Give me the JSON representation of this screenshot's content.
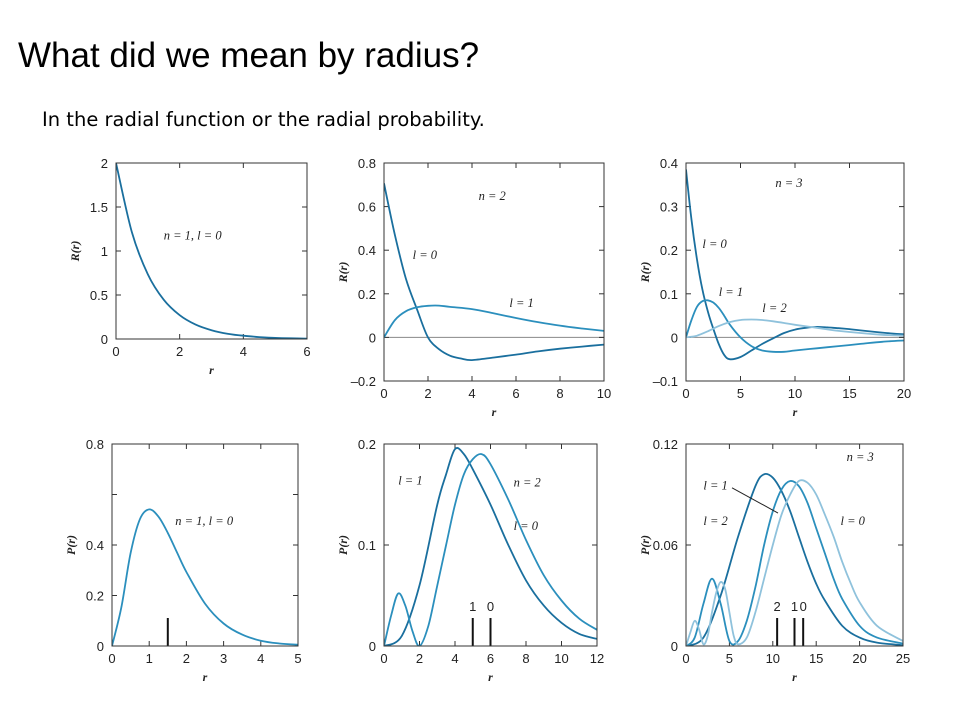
{
  "slide": {
    "title": "What did we mean by radius?",
    "subtitle": "In the radial function or the radial probability."
  },
  "colors": {
    "dark": "#1a6f9e",
    "mid": "#2b8fbd",
    "light": "#8fc2dc",
    "axis": "#333333",
    "zero": "#888888"
  },
  "chart_data": [
    {
      "type": "line",
      "xlabel": "r",
      "ylabel": "R(r)",
      "xlim": [
        0,
        6
      ],
      "ylim": [
        0,
        2
      ],
      "xticks": [
        0,
        2,
        4,
        6
      ],
      "yticks": [
        0,
        0.5,
        1,
        1.5,
        2
      ],
      "yticklabels": [
        "0",
        "0.5",
        "1",
        "1.5",
        "2"
      ],
      "series": [
        {
          "color": "dark",
          "x": [
            0,
            0.5,
            1,
            1.5,
            2,
            2.5,
            3,
            3.5,
            4,
            4.5,
            5,
            5.5,
            6
          ],
          "y": [
            2,
            1.213,
            0.736,
            0.446,
            0.271,
            0.164,
            0.1,
            0.06,
            0.037,
            0.022,
            0.013,
            0.008,
            0.005
          ]
        }
      ],
      "annotations": [
        {
          "text": "n = 1, l = 0",
          "x": 1.5,
          "y": 1.13
        }
      ]
    },
    {
      "type": "line",
      "xlabel": "r",
      "ylabel": "R(r)",
      "xlim": [
        0,
        10
      ],
      "ylim": [
        -0.2,
        0.8
      ],
      "xticks": [
        0,
        2,
        4,
        6,
        8,
        10
      ],
      "yticks": [
        -0.2,
        0,
        0.2,
        0.4,
        0.6,
        0.8
      ],
      "yticklabels": [
        "–0.2",
        "0",
        "0.2",
        "0.4",
        "0.6",
        "0.8"
      ],
      "zero_line": true,
      "series": [
        {
          "label": "l = 0",
          "color": "dark",
          "x": [
            0,
            0.5,
            1,
            1.5,
            2,
            2.5,
            3,
            3.5,
            4,
            5,
            6,
            7,
            8,
            9,
            10
          ],
          "y": [
            0.707,
            0.468,
            0.268,
            0.129,
            0.0,
            -0.054,
            -0.084,
            -0.097,
            -0.104,
            -0.092,
            -0.079,
            -0.064,
            -0.052,
            -0.042,
            -0.033
          ]
        },
        {
          "label": "l = 1",
          "color": "mid",
          "x": [
            0,
            0.5,
            1,
            1.5,
            2,
            2.5,
            3,
            4,
            5,
            6,
            7,
            8,
            9,
            10
          ],
          "y": [
            0,
            0.08,
            0.12,
            0.138,
            0.145,
            0.146,
            0.14,
            0.13,
            0.11,
            0.089,
            0.07,
            0.054,
            0.041,
            0.03
          ]
        }
      ],
      "annotations": [
        {
          "text": "n = 2",
          "x": 4.3,
          "y": 0.63
        },
        {
          "text": "l = 0",
          "x": 1.3,
          "y": 0.36
        },
        {
          "text": "l = 1",
          "x": 5.7,
          "y": 0.14
        }
      ]
    },
    {
      "type": "line",
      "xlabel": "r",
      "ylabel": "R(r)",
      "xlim": [
        0,
        20
      ],
      "ylim": [
        -0.1,
        0.4
      ],
      "xticks": [
        0,
        5,
        10,
        15,
        20
      ],
      "yticks": [
        -0.1,
        0,
        0.1,
        0.2,
        0.3,
        0.4
      ],
      "yticklabels": [
        "–0.1",
        "0",
        "0.1",
        "0.2",
        "0.3",
        "0.4"
      ],
      "zero_line": true,
      "series": [
        {
          "label": "l = 0",
          "color": "dark",
          "x": [
            0,
            0.5,
            1,
            1.5,
            2,
            2.5,
            3,
            3.5,
            4,
            5,
            6,
            7,
            8,
            9,
            10,
            11,
            12,
            13,
            14,
            15,
            16,
            18,
            20
          ],
          "y": [
            0.385,
            0.27,
            0.18,
            0.11,
            0.06,
            0.02,
            -0.015,
            -0.04,
            -0.05,
            -0.045,
            -0.03,
            -0.015,
            -0.002,
            0.01,
            0.018,
            0.022,
            0.024,
            0.023,
            0.021,
            0.019,
            0.016,
            0.011,
            0.007
          ]
        },
        {
          "label": "l = 1",
          "color": "mid",
          "x": [
            0,
            0.5,
            1,
            1.5,
            2,
            2.5,
            3,
            3.5,
            4,
            5,
            6,
            7,
            8,
            9,
            10,
            12,
            14,
            16,
            18,
            20
          ],
          "y": [
            0,
            0.04,
            0.07,
            0.083,
            0.085,
            0.08,
            0.068,
            0.05,
            0.03,
            0.0,
            -0.02,
            -0.03,
            -0.033,
            -0.033,
            -0.03,
            -0.025,
            -0.02,
            -0.015,
            -0.01,
            -0.007
          ]
        },
        {
          "label": "l = 2",
          "color": "light",
          "x": [
            0,
            1,
            2,
            3,
            4,
            5,
            6,
            7,
            8,
            9,
            10,
            12,
            14,
            16,
            18,
            20
          ],
          "y": [
            0,
            0.004,
            0.014,
            0.026,
            0.035,
            0.04,
            0.041,
            0.04,
            0.037,
            0.033,
            0.029,
            0.022,
            0.015,
            0.01,
            0.006,
            0.004
          ]
        }
      ],
      "annotations": [
        {
          "text": "n = 3",
          "x": 8.2,
          "y": 0.345
        },
        {
          "text": "l = 0",
          "x": 1.5,
          "y": 0.205
        },
        {
          "text": "l = 1",
          "x": 3.0,
          "y": 0.095
        },
        {
          "text": "l = 2",
          "x": 7.0,
          "y": 0.058
        }
      ]
    },
    {
      "type": "line",
      "xlabel": "r",
      "ylabel": "P(r)",
      "xlim": [
        0,
        5
      ],
      "ylim": [
        0,
        0.8
      ],
      "xticks": [
        0,
        1,
        2,
        3,
        4,
        5
      ],
      "yticks": [
        0,
        0.2,
        0.4,
        0.6,
        0.8
      ],
      "yticklabels": [
        "0",
        "0.2",
        "0.4",
        "",
        "0.8"
      ],
      "series": [
        {
          "color": "mid",
          "x": [
            0,
            0.25,
            0.5,
            0.75,
            1,
            1.25,
            1.5,
            1.75,
            2,
            2.5,
            3,
            3.5,
            4,
            4.5,
            5
          ],
          "y": [
            0,
            0.152,
            0.368,
            0.502,
            0.541,
            0.512,
            0.448,
            0.37,
            0.293,
            0.168,
            0.089,
            0.045,
            0.021,
            0.01,
            0.005
          ]
        }
      ],
      "markers": [
        {
          "x": 1.5,
          "label": ""
        }
      ],
      "annotations": [
        {
          "text": "n = 1, l = 0",
          "x": 1.7,
          "y": 0.48
        }
      ]
    },
    {
      "type": "line",
      "xlabel": "r",
      "ylabel": "P(r)",
      "xlim": [
        0,
        12
      ],
      "ylim": [
        0,
        0.2
      ],
      "xticks": [
        0,
        2,
        4,
        6,
        8,
        10,
        12
      ],
      "yticks": [
        0,
        0.1,
        0.2
      ],
      "yticklabels": [
        "0",
        "0.1",
        "0.2"
      ],
      "series": [
        {
          "label": "l = 1",
          "color": "dark",
          "x": [
            0,
            1,
            2,
            3,
            3.5,
            4,
            4.5,
            5,
            6,
            7,
            8,
            9,
            10,
            11,
            12
          ],
          "y": [
            0,
            0.01,
            0.06,
            0.14,
            0.17,
            0.195,
            0.19,
            0.175,
            0.14,
            0.1,
            0.065,
            0.04,
            0.023,
            0.012,
            0.007
          ]
        },
        {
          "label": "l = 0",
          "color": "mid",
          "x": [
            0,
            0.4,
            0.8,
            1.2,
            1.6,
            2,
            2.5,
            3,
            3.5,
            4,
            4.5,
            5,
            5.5,
            6,
            7,
            8,
            9,
            10,
            11,
            12
          ],
          "y": [
            0,
            0.03,
            0.052,
            0.04,
            0.015,
            0,
            0.02,
            0.06,
            0.1,
            0.14,
            0.17,
            0.185,
            0.19,
            0.18,
            0.145,
            0.105,
            0.07,
            0.045,
            0.027,
            0.016
          ]
        }
      ],
      "markers": [
        {
          "x": 5,
          "label": "1"
        },
        {
          "x": 6,
          "label": "0"
        }
      ],
      "annotations": [
        {
          "text": "l = 1",
          "x": 0.8,
          "y": 0.16
        },
        {
          "text": "n = 2",
          "x": 7.3,
          "y": 0.158
        },
        {
          "text": "l = 0",
          "x": 7.3,
          "y": 0.115
        }
      ]
    },
    {
      "type": "line",
      "xlabel": "r",
      "ylabel": "P(r)",
      "xlim": [
        0,
        25
      ],
      "ylim": [
        0,
        0.12
      ],
      "xticks": [
        0,
        5,
        10,
        15,
        20,
        25
      ],
      "yticks": [
        0,
        0.06,
        0.12
      ],
      "yticklabels": [
        "0",
        "0.06",
        "0.12"
      ],
      "series": [
        {
          "label": "l = 2",
          "color": "dark",
          "x": [
            0,
            2,
            4,
            6,
            8,
            9,
            10,
            11,
            12,
            13,
            14,
            15,
            16,
            18,
            20,
            22,
            25
          ],
          "y": [
            0,
            0.005,
            0.03,
            0.065,
            0.095,
            0.102,
            0.1,
            0.092,
            0.08,
            0.065,
            0.05,
            0.037,
            0.027,
            0.012,
            0.005,
            0.002,
            0.0005
          ]
        },
        {
          "label": "l = 1",
          "color": "mid",
          "x": [
            0,
            1,
            2,
            3,
            4,
            5,
            6,
            7,
            8,
            9,
            10,
            11,
            12,
            13,
            14,
            15,
            16,
            17,
            18,
            20,
            22,
            25
          ],
          "y": [
            0,
            0.005,
            0.025,
            0.04,
            0.025,
            0.003,
            0.003,
            0.015,
            0.035,
            0.06,
            0.08,
            0.093,
            0.098,
            0.095,
            0.085,
            0.07,
            0.055,
            0.04,
            0.028,
            0.012,
            0.005,
            0.0015
          ]
        },
        {
          "label": "l = 0",
          "color": "light",
          "x": [
            0,
            0.5,
            1,
            1.5,
            2,
            2.5,
            3,
            3.5,
            4,
            4.5,
            5,
            5.5,
            6,
            7,
            8,
            9,
            10,
            11,
            12,
            13,
            14,
            15,
            16,
            17,
            18,
            19,
            20,
            22,
            25
          ],
          "y": [
            0,
            0.008,
            0.015,
            0.01,
            0.001,
            0.006,
            0.02,
            0.032,
            0.038,
            0.034,
            0.02,
            0.006,
            0.001,
            0.005,
            0.02,
            0.04,
            0.06,
            0.078,
            0.09,
            0.098,
            0.097,
            0.09,
            0.078,
            0.065,
            0.05,
            0.037,
            0.026,
            0.012,
            0.003
          ]
        }
      ],
      "markers": [
        {
          "x": 10.5,
          "label": "2"
        },
        {
          "x": 12.5,
          "label": "1"
        },
        {
          "x": 13.5,
          "label": "0"
        }
      ],
      "annotations": [
        {
          "text": "n = 3",
          "x": 18.5,
          "y": 0.11
        },
        {
          "text": "l = 1",
          "x": 2.0,
          "y": 0.093
        },
        {
          "text": "l = 2",
          "x": 2.0,
          "y": 0.072
        },
        {
          "text": "l = 0",
          "x": 17.8,
          "y": 0.072
        }
      ],
      "pointers": [
        {
          "from": [
            5.3,
            0.094
          ],
          "to": [
            10.6,
            0.079
          ]
        }
      ]
    }
  ]
}
